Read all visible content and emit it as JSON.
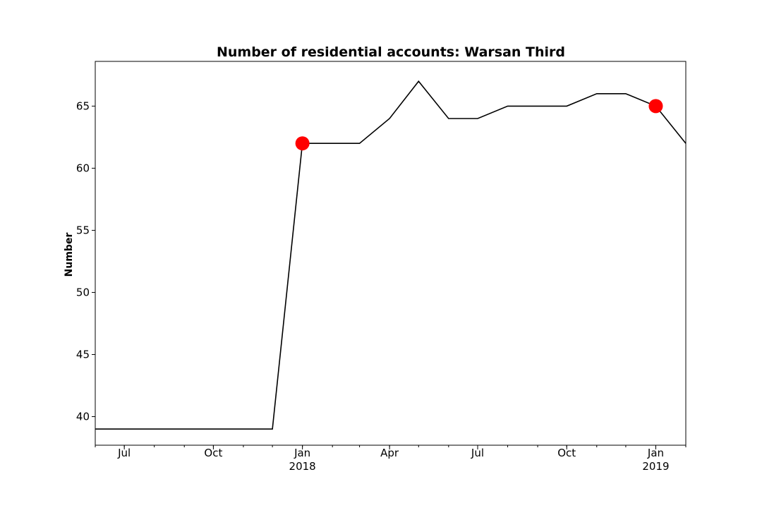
{
  "chart_data": {
    "type": "line",
    "title": "Number of residential accounts: Warsan Third",
    "xlabel": "",
    "ylabel": "Number",
    "x_axis": {
      "type": "date",
      "range": [
        "2017-06-01",
        "2019-02-01"
      ],
      "major_ticks": [
        {
          "date": "2017-07-01",
          "label": "Jul",
          "sublabel": ""
        },
        {
          "date": "2017-10-01",
          "label": "Oct",
          "sublabel": ""
        },
        {
          "date": "2018-01-01",
          "label": "Jan",
          "sublabel": "2018"
        },
        {
          "date": "2018-04-01",
          "label": "Apr",
          "sublabel": ""
        },
        {
          "date": "2018-07-01",
          "label": "Jul",
          "sublabel": ""
        },
        {
          "date": "2018-10-01",
          "label": "Oct",
          "sublabel": ""
        },
        {
          "date": "2019-01-01",
          "label": "Jan",
          "sublabel": "2019"
        }
      ]
    },
    "y_axis": {
      "range": [
        37.7,
        68.6
      ],
      "ticks": [
        40,
        45,
        50,
        55,
        60,
        65
      ]
    },
    "grid": false,
    "legend": "none",
    "series": [
      {
        "color": "#000000",
        "points": [
          {
            "x": "2017-06-01",
            "y": 39
          },
          {
            "x": "2017-07-01",
            "y": 39
          },
          {
            "x": "2017-08-01",
            "y": 39
          },
          {
            "x": "2017-09-01",
            "y": 39
          },
          {
            "x": "2017-10-01",
            "y": 39
          },
          {
            "x": "2017-11-01",
            "y": 39
          },
          {
            "x": "2017-12-01",
            "y": 39
          },
          {
            "x": "2018-01-01",
            "y": 62
          },
          {
            "x": "2018-02-01",
            "y": 62
          },
          {
            "x": "2018-03-01",
            "y": 62
          },
          {
            "x": "2018-04-01",
            "y": 64
          },
          {
            "x": "2018-05-01",
            "y": 67
          },
          {
            "x": "2018-06-01",
            "y": 64
          },
          {
            "x": "2018-07-01",
            "y": 64
          },
          {
            "x": "2018-08-01",
            "y": 65
          },
          {
            "x": "2018-09-01",
            "y": 65
          },
          {
            "x": "2018-10-01",
            "y": 65
          },
          {
            "x": "2018-11-01",
            "y": 66
          },
          {
            "x": "2018-12-01",
            "y": 66
          },
          {
            "x": "2019-01-01",
            "y": 65
          },
          {
            "x": "2019-02-01",
            "y": 62
          }
        ]
      }
    ],
    "highlight_markers": {
      "color": "#ff0000",
      "points": [
        {
          "x": "2018-01-01",
          "y": 62
        },
        {
          "x": "2019-01-01",
          "y": 65
        }
      ]
    }
  }
}
